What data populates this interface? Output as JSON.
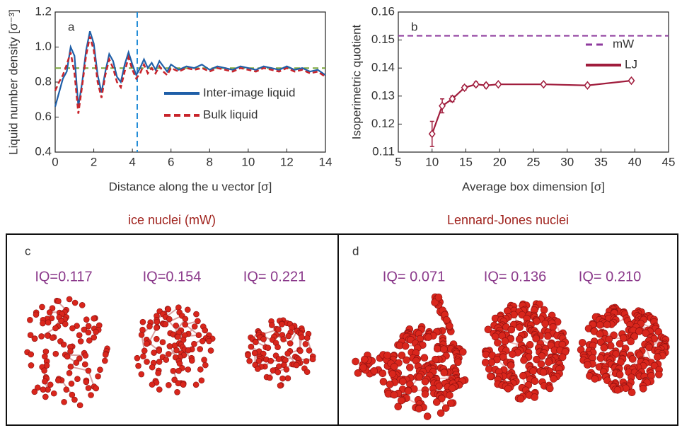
{
  "chart_data": [
    {
      "type": "line",
      "panel_label": "a",
      "xlabel": "Distance along the u vector [σ]",
      "ylabel": "Liquid number density [σ⁻³]",
      "x": [
        0,
        0.2,
        0.4,
        0.6,
        0.8,
        1.0,
        1.2,
        1.4,
        1.6,
        1.8,
        2.0,
        2.2,
        2.4,
        2.6,
        2.8,
        3.0,
        3.2,
        3.4,
        3.6,
        3.8,
        4.0,
        4.2,
        4.4,
        4.6,
        4.8,
        5.0,
        5.2,
        5.4,
        5.6,
        5.8,
        6.0,
        6.4,
        6.8,
        7.2,
        7.6,
        8.0,
        8.4,
        8.8,
        9.2,
        9.6,
        10.0,
        10.4,
        10.8,
        11.2,
        11.6,
        12.0,
        12.4,
        12.8,
        13.2,
        13.6,
        14.0
      ],
      "series": [
        {
          "name": "Inter-image liquid",
          "color": "#1f5fa8",
          "dashed": false,
          "values": [
            0.66,
            0.74,
            0.82,
            0.86,
            1.0,
            0.95,
            0.66,
            0.8,
            0.98,
            1.09,
            1.02,
            0.84,
            0.74,
            0.86,
            0.96,
            0.92,
            0.83,
            0.8,
            0.9,
            0.97,
            0.9,
            0.84,
            0.88,
            0.93,
            0.88,
            0.91,
            0.87,
            0.92,
            0.89,
            0.86,
            0.9,
            0.87,
            0.89,
            0.88,
            0.9,
            0.87,
            0.89,
            0.88,
            0.87,
            0.89,
            0.88,
            0.87,
            0.89,
            0.88,
            0.87,
            0.89,
            0.87,
            0.88,
            0.86,
            0.87,
            0.84
          ]
        },
        {
          "name": "Bulk liquid",
          "color": "#c8242b",
          "dashed": true,
          "values": [
            0.75,
            0.8,
            0.84,
            0.9,
            0.97,
            0.85,
            0.62,
            0.78,
            0.95,
            1.06,
            0.98,
            0.8,
            0.71,
            0.84,
            0.93,
            0.88,
            0.8,
            0.77,
            0.86,
            0.94,
            0.87,
            0.82,
            0.85,
            0.9,
            0.85,
            0.88,
            0.85,
            0.89,
            0.86,
            0.84,
            0.88,
            0.86,
            0.88,
            0.87,
            0.88,
            0.86,
            0.88,
            0.87,
            0.86,
            0.88,
            0.87,
            0.86,
            0.88,
            0.87,
            0.86,
            0.88,
            0.86,
            0.87,
            0.85,
            0.86,
            0.83
          ]
        }
      ],
      "hlines": [
        {
          "value": 0.88,
          "color": "#7aa63a"
        }
      ],
      "vlines": [
        {
          "value": 4.25,
          "color": "#1e8ad6"
        }
      ],
      "xlim": [
        0,
        14
      ],
      "ylim": [
        0.4,
        1.2
      ],
      "xticks": [
        0,
        2,
        4,
        6,
        8,
        10,
        12,
        14
      ],
      "yticks": [
        0.4,
        0.6,
        0.8,
        {
          "value": 1,
          "label": "1.0"
        },
        1.2
      ]
    },
    {
      "type": "line",
      "panel_label": "b",
      "xlabel": "Average box dimension [σ]",
      "ylabel": "Isoperimetric quotient",
      "x": [
        10,
        11.5,
        13,
        14.8,
        16.5,
        18,
        19.8,
        26.5,
        33,
        39.5
      ],
      "series": [
        {
          "name": "LJ",
          "color": "#a01c3c",
          "dashed": false,
          "marker": "diamond",
          "values": [
            0.1165,
            0.1265,
            0.129,
            0.133,
            0.1342,
            0.1338,
            0.1342,
            0.1342,
            0.1338,
            0.1355
          ],
          "errors": [
            0.0045,
            0.0025,
            0.001,
            0.0008,
            0.0008,
            0.0008,
            0.0006,
            0.0006,
            0.0006,
            0.0006
          ]
        }
      ],
      "hlines": [
        {
          "name": "mW",
          "value": 0.1515,
          "color": "#8e3a9d"
        }
      ],
      "xlim": [
        5,
        45
      ],
      "ylim": [
        0.11,
        0.16
      ],
      "xticks": [
        5,
        10,
        15,
        20,
        25,
        30,
        35,
        40,
        45
      ],
      "yticks": [
        0.11,
        0.12,
        0.13,
        0.14,
        0.15,
        0.16
      ]
    }
  ],
  "panels": [
    {
      "title": "ice nuclei (mW)",
      "label": "c",
      "iq_labels": [
        "IQ=0.117",
        "IQ=0.154",
        "IQ= 0.221"
      ]
    },
    {
      "title": "Lennard-Jones nuclei",
      "label": "d",
      "iq_labels": [
        "IQ= 0.071",
        "IQ= 0.136",
        "IQ= 0.210"
      ]
    }
  ]
}
